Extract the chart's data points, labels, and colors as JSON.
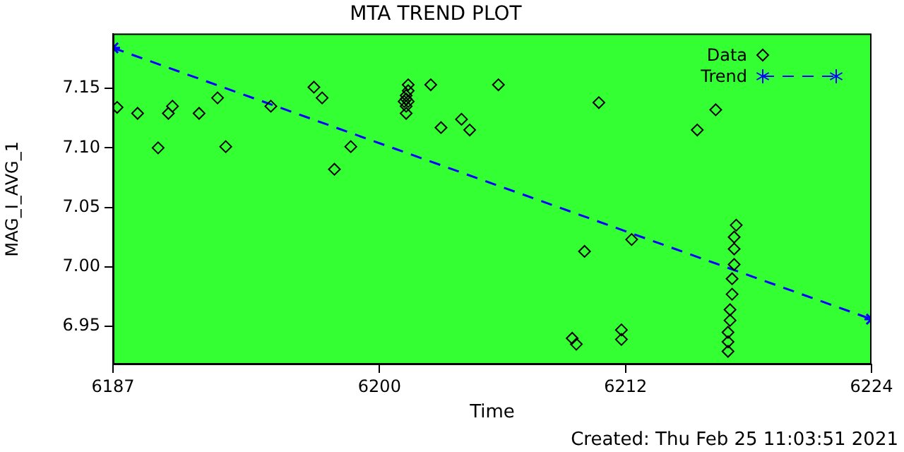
{
  "chart_data": {
    "type": "scatter",
    "title": "MTA TREND PLOT",
    "xlabel": "Time",
    "ylabel": "MAG_I_AVG_1",
    "annotations": [
      "Created: Thu Feb 25 11:03:51 2021"
    ],
    "xlim": [
      6187,
      6224
    ],
    "xticks": [
      6187,
      6200,
      6212,
      6224
    ],
    "ylim": [
      6.918,
      7.196
    ],
    "yticks": [
      {
        "value": 6.95,
        "label": "6.95"
      },
      {
        "value": 7.0,
        "label": "7.00"
      },
      {
        "value": 7.05,
        "label": "7.05"
      },
      {
        "value": 7.1,
        "label": "7.10"
      },
      {
        "value": 7.15,
        "label": "7.15"
      }
    ],
    "grid": false,
    "legend": "top right",
    "series": [
      {
        "name": "Data",
        "marker": "diamond",
        "color": "#000000",
        "x": [
          6187.2,
          6188.2,
          6189.2,
          6189.7,
          6189.9,
          6191.2,
          6192.1,
          6192.5,
          6194.7,
          6196.8,
          6197.2,
          6197.8,
          6198.6,
          6201.4,
          6201.4,
          6201.3,
          6201.3,
          6201.2,
          6201.4,
          6201.3,
          6201.3,
          6202.5,
          6203.0,
          6204.0,
          6204.4,
          6205.8,
          6210.7,
          6210.0,
          6209.4,
          6209.6,
          6211.8,
          6211.8,
          6212.3,
          6215.5,
          6216.4,
          6217.4,
          6217.3,
          6217.3,
          6217.3,
          6217.2,
          6217.2,
          6217.1,
          6217.1,
          6217.0,
          6217.0,
          6217.0
        ],
        "values": [
          7.134,
          7.129,
          7.1,
          7.129,
          7.135,
          7.129,
          7.142,
          7.101,
          7.135,
          7.151,
          7.142,
          7.082,
          7.101,
          7.153,
          7.148,
          7.144,
          7.141,
          7.139,
          7.139,
          7.135,
          7.129,
          7.153,
          7.117,
          7.124,
          7.115,
          7.153,
          7.138,
          7.013,
          6.94,
          6.935,
          6.947,
          6.939,
          7.023,
          7.115,
          7.132,
          7.035,
          7.025,
          7.015,
          7.002,
          6.99,
          6.977,
          6.964,
          6.955,
          6.945,
          6.937,
          6.929
        ]
      },
      {
        "name": "Trend",
        "type": "line",
        "marker": "cross",
        "line_style": "dashed",
        "color": "#0000ff",
        "x": [
          6187,
          6224
        ],
        "values": [
          7.184,
          6.956
        ]
      }
    ]
  }
}
